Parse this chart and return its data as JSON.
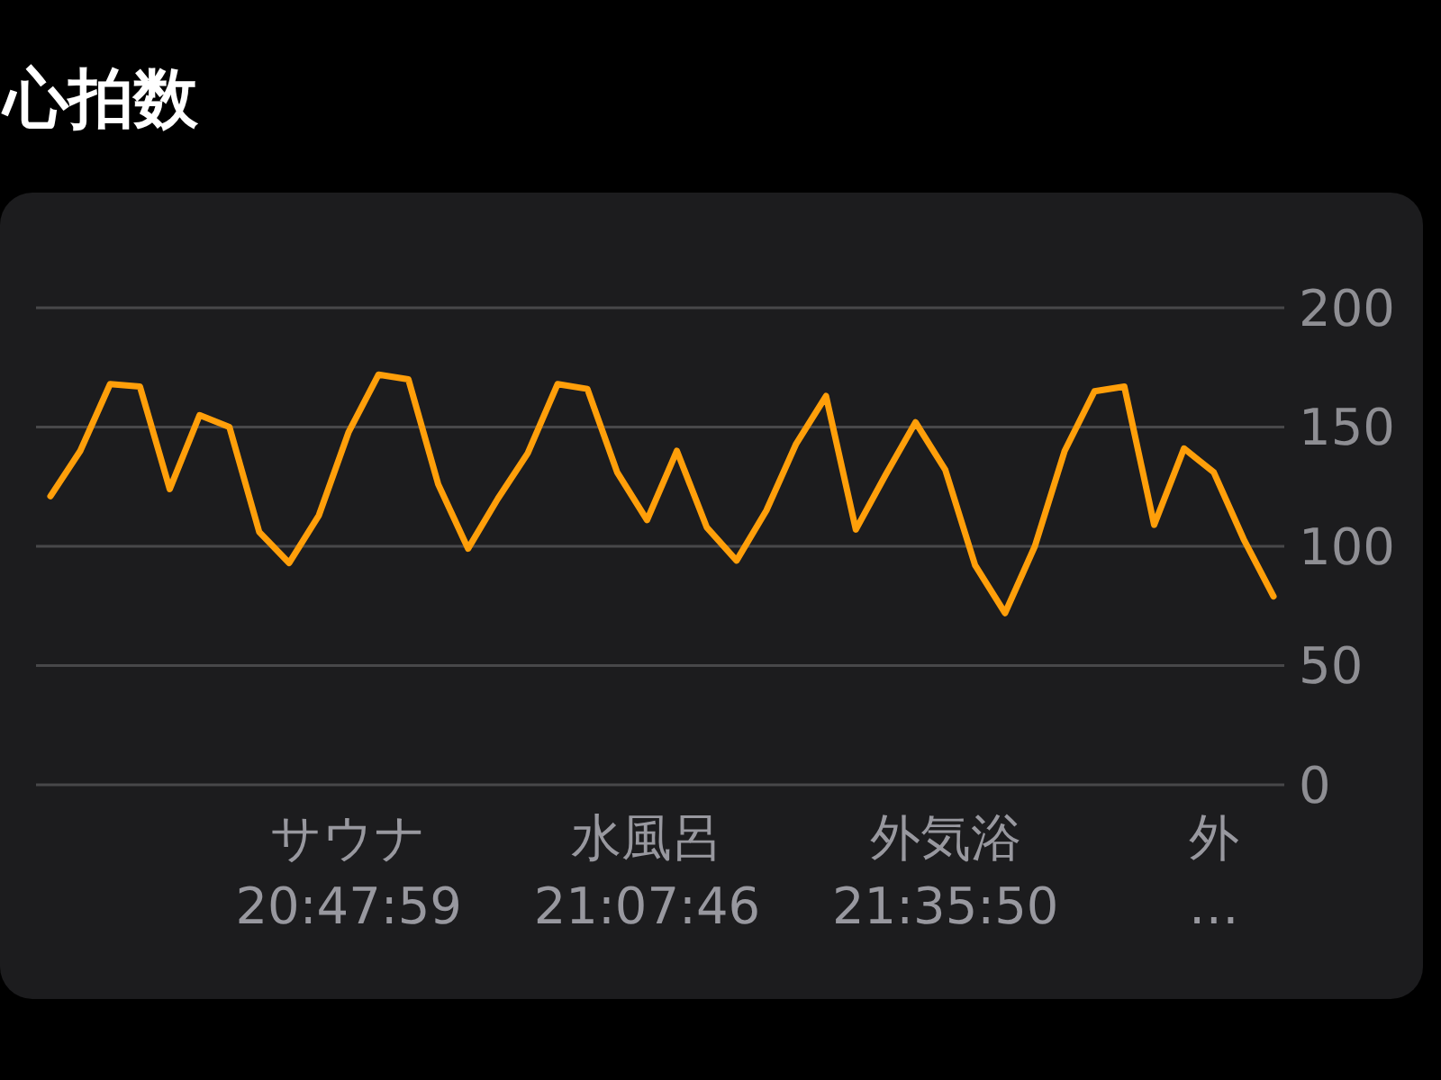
{
  "chart_data": {
    "type": "line",
    "title": "心拍数",
    "categories": [
      null,
      null,
      null,
      null,
      null,
      null,
      null,
      null,
      null,
      null,
      "サウナ\n20:47:59",
      null,
      null,
      null,
      null,
      null,
      null,
      null,
      null,
      null,
      "水風呂\n21:07:46",
      null,
      null,
      null,
      null,
      null,
      null,
      null,
      null,
      null,
      "外気浴\n21:35:50",
      null,
      null,
      null,
      null,
      null,
      null,
      null,
      null,
      "外\n…",
      null,
      null
    ],
    "values": [
      121,
      140,
      168,
      167,
      124,
      155,
      150,
      106,
      93,
      113,
      148,
      172,
      170,
      126,
      99,
      120,
      139,
      168,
      166,
      131,
      111,
      140,
      108,
      94,
      115,
      143,
      163,
      107,
      130,
      152,
      132,
      92,
      72,
      100,
      140,
      165,
      167,
      109,
      141,
      131,
      103,
      79
    ],
    "color": "#ff9f0a",
    "ylim": [
      0,
      200
    ],
    "yticks": [
      0,
      50,
      100,
      150,
      200
    ],
    "grid": "y",
    "marker": "none",
    "line_style": "solid"
  }
}
